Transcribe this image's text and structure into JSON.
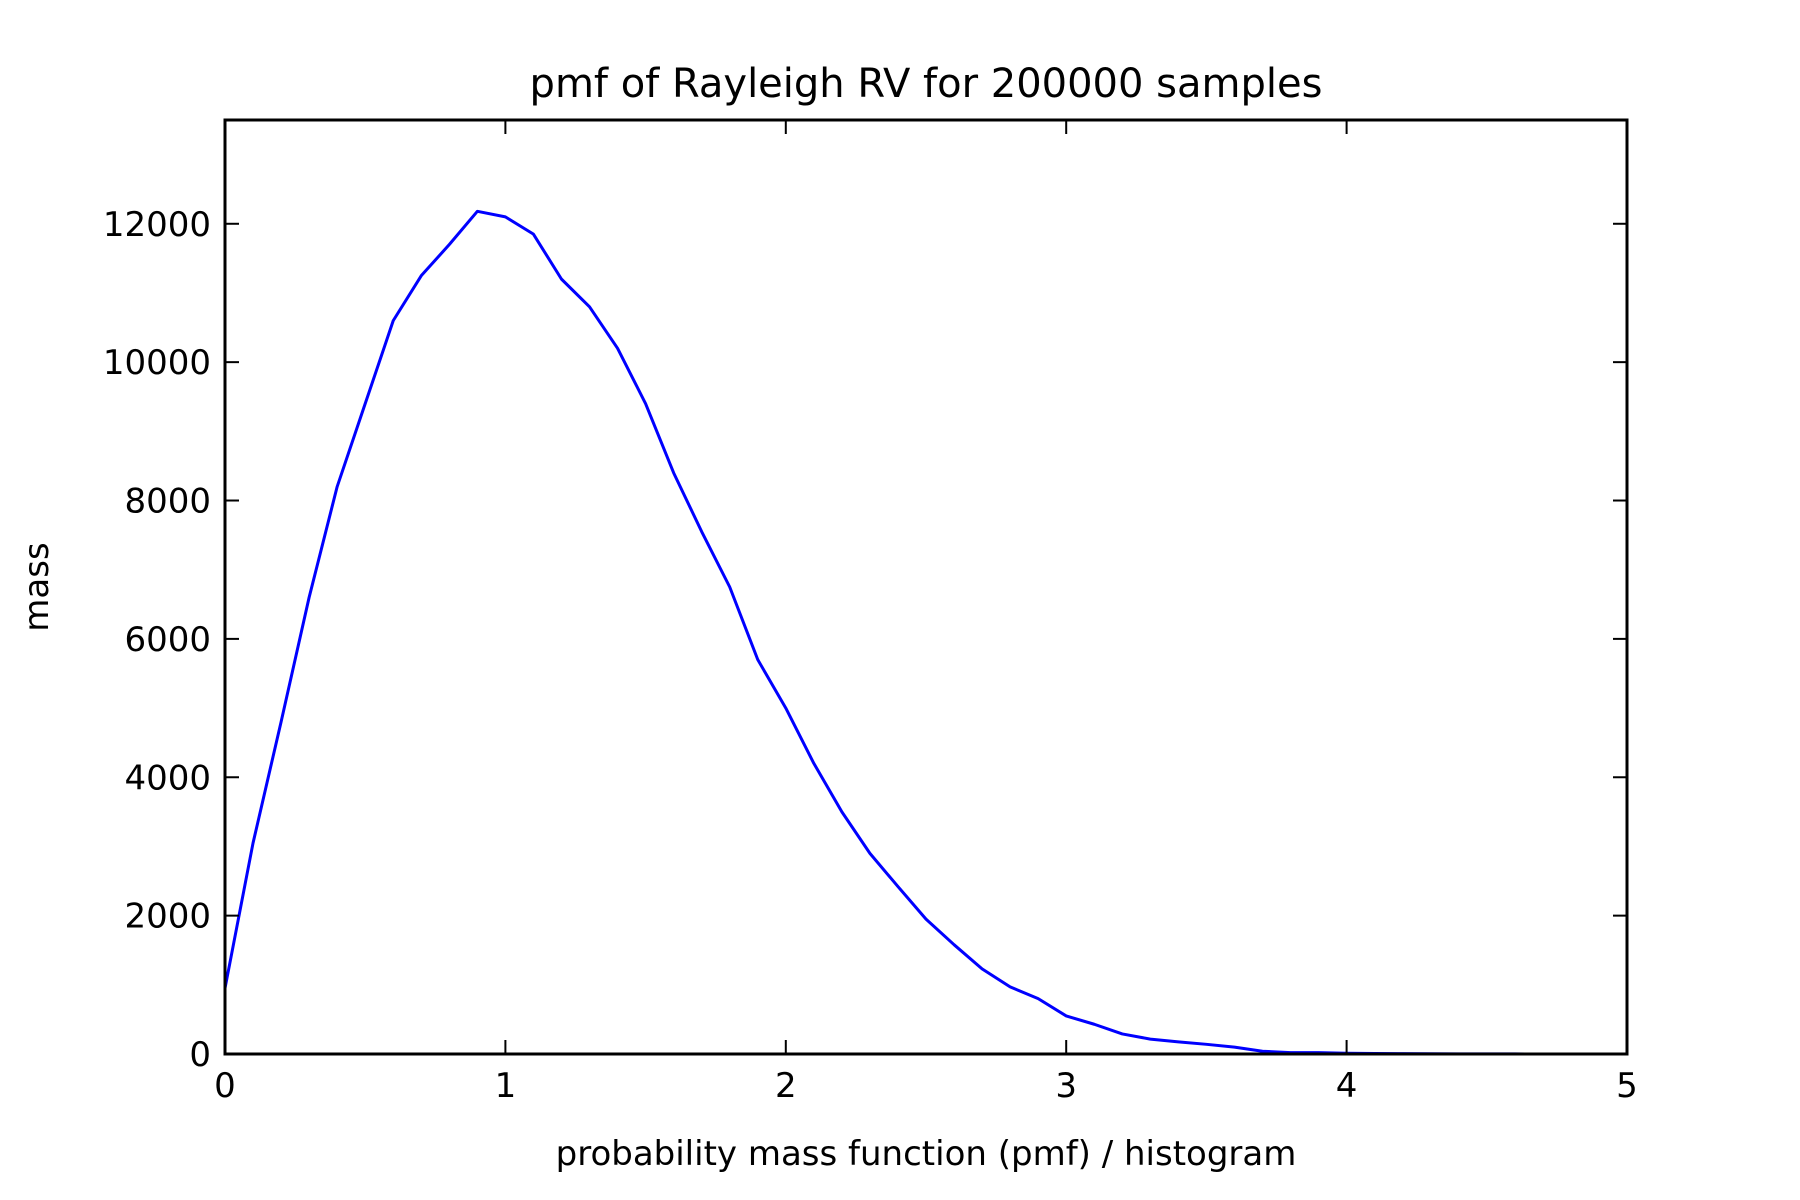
{
  "chart_data": {
    "type": "line",
    "title": "pmf of Rayleigh RV for 200000 samples",
    "xlabel": "probability mass function (pmf) / histogram",
    "ylabel": "mass",
    "xlim": [
      0,
      5
    ],
    "ylim": [
      0,
      13500
    ],
    "xticks": [
      "0",
      "1",
      "2",
      "3",
      "4",
      "5"
    ],
    "yticks": [
      "0",
      "2000",
      "4000",
      "6000",
      "8000",
      "10000",
      "12000"
    ],
    "grid": false,
    "series": [
      {
        "color": "#0000ff",
        "x": [
          0.0,
          0.1,
          0.2,
          0.3,
          0.4,
          0.5,
          0.6,
          0.7,
          0.8,
          0.9,
          1.0,
          1.1,
          1.2,
          1.3,
          1.4,
          1.5,
          1.6,
          1.7,
          1.8,
          1.9,
          2.0,
          2.1,
          2.2,
          2.3,
          2.4,
          2.5,
          2.6,
          2.7,
          2.8,
          2.9,
          3.0,
          3.1,
          3.2,
          3.3,
          3.4,
          3.5,
          3.6,
          3.7,
          3.8,
          3.9,
          4.0,
          4.1,
          4.2,
          4.3,
          4.4,
          4.5,
          4.6,
          4.7,
          4.8,
          4.9,
          5.0
        ],
        "y": [
          950,
          3050,
          4800,
          6600,
          8200,
          9400,
          10600,
          11250,
          11700,
          12180,
          12100,
          11850,
          11200,
          10800,
          10200,
          9400,
          8400,
          7550,
          6750,
          5700,
          5000,
          4200,
          3500,
          2900,
          2420,
          1950,
          1580,
          1230,
          970,
          800,
          550,
          430,
          290,
          215,
          175,
          140,
          100,
          40,
          20,
          20,
          10,
          8,
          5,
          3,
          2,
          1,
          1,
          0,
          0,
          0,
          0
        ]
      }
    ]
  }
}
